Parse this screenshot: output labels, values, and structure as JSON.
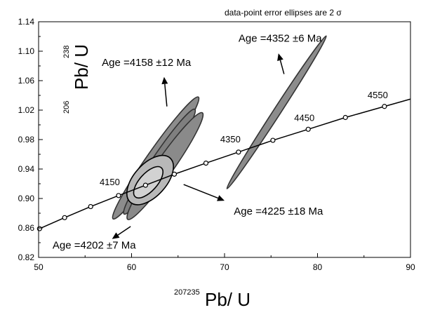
{
  "chart_data": {
    "type": "scatter",
    "note": "data-point error ellipses are 2 σ",
    "xlabel": {
      "superscript": "207235",
      "main": "Pb/ U"
    },
    "ylabel": {
      "superscript_top": "238",
      "superscript_bottom": "206",
      "main": "Pb/ U"
    },
    "xlim": [
      50,
      90
    ],
    "ylim": [
      0.82,
      1.14
    ],
    "x_ticks": [
      50,
      60,
      70,
      80,
      90
    ],
    "y_ticks": [
      0.82,
      0.86,
      0.9,
      0.94,
      0.98,
      1.02,
      1.06,
      1.1,
      1.14
    ],
    "y_tick_labels": [
      "0.82",
      "0.86",
      "0.90",
      "0.94",
      "0.98",
      "1.02",
      "1.06",
      "1.10",
      "1.14"
    ],
    "grid": false,
    "concordia": {
      "points": [
        {
          "x": 50.1,
          "y": 0.859
        },
        {
          "x": 52.8,
          "y": 0.874
        },
        {
          "x": 55.6,
          "y": 0.889
        },
        {
          "x": 58.6,
          "y": 0.904
        },
        {
          "x": 61.5,
          "y": 0.918
        },
        {
          "x": 64.6,
          "y": 0.933
        },
        {
          "x": 68.0,
          "y": 0.948
        },
        {
          "x": 71.5,
          "y": 0.963
        },
        {
          "x": 75.2,
          "y": 0.979
        },
        {
          "x": 79.0,
          "y": 0.994
        },
        {
          "x": 83.0,
          "y": 1.01
        },
        {
          "x": 87.2,
          "y": 1.025
        }
      ],
      "line_end": {
        "x": 90,
        "y": 1.035
      },
      "labels": [
        {
          "text": "4150",
          "x": 58.6,
          "y": 0.904
        },
        {
          "text": "4350",
          "x": 71.5,
          "y": 0.963
        },
        {
          "text": "4450",
          "x": 79.0,
          "y": 0.994
        },
        {
          "text": "4550",
          "x": 87.2,
          "y": 1.025
        }
      ]
    },
    "ellipses": [
      {
        "cx": 62.6,
        "cy": 0.955,
        "angle_deg": 55,
        "rx_data": 8.0,
        "ry_data": 0.011,
        "fill": "#8c8c8c",
        "stroke": "#333333"
      },
      {
        "cx": 63.0,
        "cy": 0.95,
        "angle_deg": 56,
        "rx_data": 6.8,
        "ry_data": 0.01,
        "fill": "#7f7f7f",
        "stroke": "#333333"
      },
      {
        "cx": 63.6,
        "cy": 0.944,
        "angle_deg": 55,
        "rx_data": 7.0,
        "ry_data": 0.012,
        "fill": "#8a8a8a",
        "stroke": "#333333"
      },
      {
        "cx": 62.0,
        "cy": 0.925,
        "angle_deg": 48,
        "rx_data": 3.2,
        "ry_data": 0.022,
        "fill": "#b8b8b8",
        "stroke": "#000000"
      },
      {
        "cx": 61.8,
        "cy": 0.922,
        "angle_deg": 48,
        "rx_data": 2.1,
        "ry_data": 0.012,
        "fill": "#d2d2d2",
        "stroke": "#000000"
      },
      {
        "cx": 75.6,
        "cy": 1.017,
        "angle_deg": 57,
        "rx_data": 9.8,
        "ry_data": 0.005,
        "fill": "#8c8c8c",
        "stroke": "#333333"
      }
    ],
    "annotations": [
      {
        "text": "Age =4352 ±6 Ma",
        "x": 71.5,
        "y": 1.113
      },
      {
        "text": "Age =4158 ±12 Ma",
        "x": 56.8,
        "y": 1.08
      },
      {
        "text": "Age =4225 ±18 Ma",
        "x": 71.0,
        "y": 0.878
      },
      {
        "text": "Age =4202 ±7 Ma",
        "x": 51.5,
        "y": 0.832
      }
    ],
    "arrows": [
      {
        "from": [
          76.4,
          1.069
        ],
        "to": [
          75.8,
          1.097
        ]
      },
      {
        "from": [
          63.8,
          1.025
        ],
        "to": [
          63.5,
          1.065
        ]
      },
      {
        "from": [
          65.6,
          0.919
        ],
        "to": [
          70.0,
          0.897
        ]
      },
      {
        "from": [
          59.9,
          0.862
        ],
        "to": [
          57.9,
          0.845
        ]
      }
    ]
  }
}
